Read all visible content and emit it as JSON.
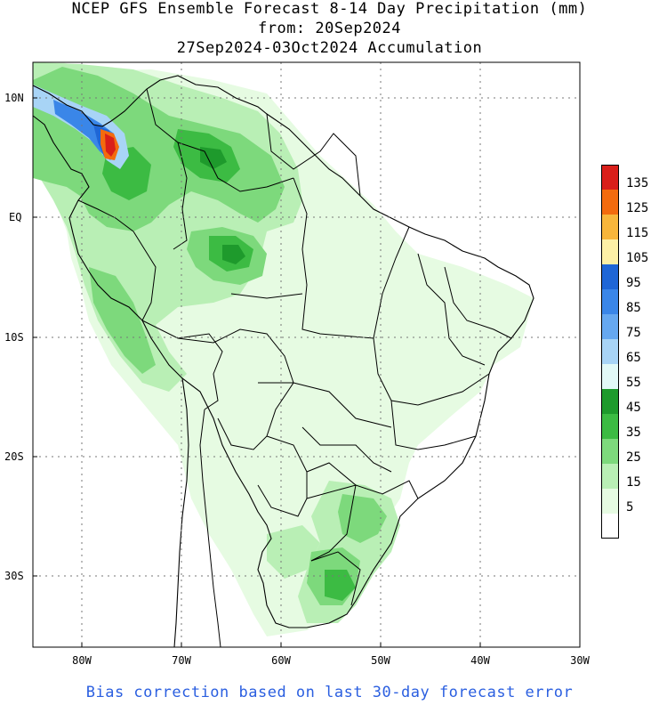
{
  "title": {
    "line1": "NCEP GFS Ensemble Forecast 8-14 Day Precipitation (mm)",
    "line2": "from: 20Sep2024",
    "line3": "27Sep2024-03Oct2024 Accumulation"
  },
  "footer": "Bias correction based on last 30-day forecast error",
  "axes": {
    "lat_labels": [
      "10N",
      "EQ",
      "10S",
      "20S",
      "30S"
    ],
    "lon_labels": [
      "80W",
      "70W",
      "60W",
      "50W",
      "40W",
      "30W"
    ]
  },
  "legend": {
    "labels": [
      "135",
      "125",
      "115",
      "105",
      "95",
      "85",
      "75",
      "65",
      "55",
      "45",
      "35",
      "25",
      "15",
      "5"
    ],
    "colors": [
      "#d91f1a",
      "#f36b0e",
      "#f8b63b",
      "#fdf0a6",
      "#1f66d6",
      "#3a86e8",
      "#66a8f0",
      "#a8d4f6",
      "#e2f9f7",
      "#1e9a2c",
      "#3cbb43",
      "#7dd97c",
      "#b9efb5",
      "#e6fbe2",
      "#ffffff"
    ]
  },
  "colors": {
    "footer_text": "#2b5fe0",
    "background": "#ffffff"
  }
}
